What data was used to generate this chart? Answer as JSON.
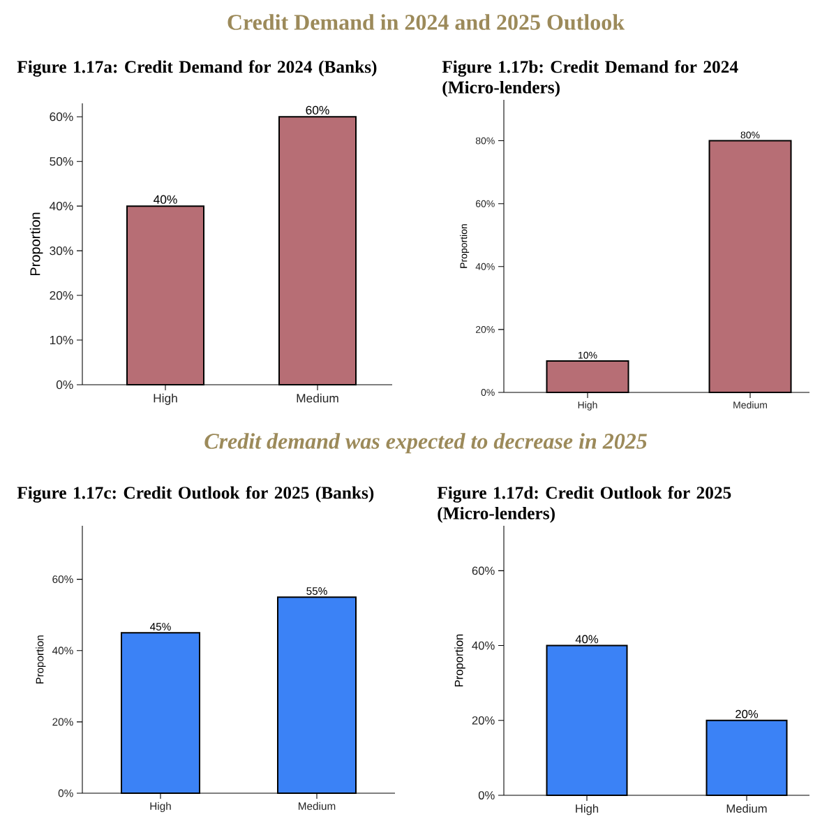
{
  "chart_data": [
    {
      "type": "bar",
      "title": "Figure 1.17a: Credit Demand for 2024 (Banks)",
      "annotations": [
        "Credit Demand in 2024 and 2025 Outlook"
      ],
      "ylabel": "Proportion",
      "categories": [
        "High",
        "Medium"
      ],
      "values": [
        40,
        60
      ],
      "value_labels": [
        "40%",
        "60%"
      ],
      "color": "#b76e75",
      "ylim": [
        0,
        63
      ],
      "yticks": [
        {
          "value": 0,
          "label": "0%"
        },
        {
          "value": 10,
          "label": "10%"
        },
        {
          "value": 20,
          "label": "20%"
        },
        {
          "value": 30,
          "label": "30%"
        },
        {
          "value": 40,
          "label": "40%"
        },
        {
          "value": 50,
          "label": "50%"
        },
        {
          "value": 60,
          "label": "60%"
        }
      ]
    },
    {
      "type": "bar",
      "title": "Figure 1.17b: Credit Demand for 2024 (Micro-lenders)",
      "ylabel": "Proportion",
      "categories": [
        "High",
        "Medium"
      ],
      "values": [
        10,
        80
      ],
      "value_labels": [
        "10%",
        "80%"
      ],
      "color": "#b76e75",
      "ylim": [
        0,
        93
      ],
      "yticks": [
        {
          "value": 0,
          "label": "0%"
        },
        {
          "value": 20,
          "label": "20%"
        },
        {
          "value": 40,
          "label": "40%"
        },
        {
          "value": 60,
          "label": "60%"
        },
        {
          "value": 80,
          "label": "80%"
        }
      ]
    },
    {
      "type": "bar",
      "title": "Figure 1.17c: Credit Outlook for 2025 (Banks)",
      "annotations": [
        "Credit demand was expected to decrease in 2025"
      ],
      "ylabel": "Proportion",
      "categories": [
        "High",
        "Medium"
      ],
      "values": [
        45,
        55
      ],
      "value_labels": [
        "45%",
        "55%"
      ],
      "color": "#3b82f6",
      "ylim": [
        0,
        75
      ],
      "yticks": [
        {
          "value": 0,
          "label": "0%"
        },
        {
          "value": 20,
          "label": "20%"
        },
        {
          "value": 40,
          "label": "40%"
        },
        {
          "value": 60,
          "label": "60%"
        }
      ]
    },
    {
      "type": "bar",
      "title": "Figure 1.17d: Credit Outlook for 2025 (Micro-lenders)",
      "ylabel": "Proportion",
      "categories": [
        "High",
        "Medium"
      ],
      "values": [
        40,
        20
      ],
      "value_labels": [
        "40%",
        "20%"
      ],
      "color": "#3b82f6",
      "ylim": [
        0,
        72
      ],
      "yticks": [
        {
          "value": 0,
          "label": "0%"
        },
        {
          "value": 20,
          "label": "20%"
        },
        {
          "value": 40,
          "label": "40%"
        },
        {
          "value": 60,
          "label": "60%"
        }
      ]
    }
  ]
}
